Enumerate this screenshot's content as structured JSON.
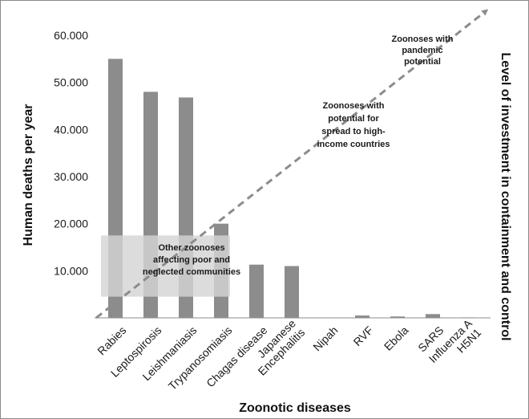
{
  "chart_data": {
    "type": "bar",
    "title": "",
    "xlabel": "Zoonotic diseases",
    "ylabel": "Human deaths per year",
    "y2label": "Level of investment in containment and control",
    "ylim": [
      0,
      60000
    ],
    "yticks": [
      "10.000",
      "20.000",
      "30.000",
      "40.000",
      "50.000",
      "60.000"
    ],
    "categories": [
      [
        "Rabies"
      ],
      [
        "Leptospirosis"
      ],
      [
        "Leishmaniasis"
      ],
      [
        "Trypanosomiasis"
      ],
      [
        "Chagas disease"
      ],
      [
        "Japanese",
        "Encephalitis"
      ],
      [
        "Nipah"
      ],
      [
        "RVF"
      ],
      [
        "Ebola"
      ],
      [
        "SARS"
      ],
      [
        "Influenza A",
        "H5N1"
      ]
    ],
    "values": [
      55000,
      48000,
      46800,
      20000,
      11300,
      11000,
      50,
      500,
      300,
      800,
      100
    ],
    "bar_color": "#8c8c8c",
    "overlay_color": "#d4d4d4",
    "trend_line": "dashed diagonal, rising left to right, arrowhead at top-right",
    "annotations": [
      {
        "lines": [
          "Zoonoses with",
          "pandemic",
          "potential"
        ]
      },
      {
        "lines": [
          "Zoonoses  with",
          "potential for",
          "spread to high-",
          "income countries"
        ]
      },
      {
        "lines": [
          "Other zoonoses",
          "affecting poor and",
          "neglected communities"
        ]
      }
    ],
    "grid": false,
    "legend": "none"
  }
}
